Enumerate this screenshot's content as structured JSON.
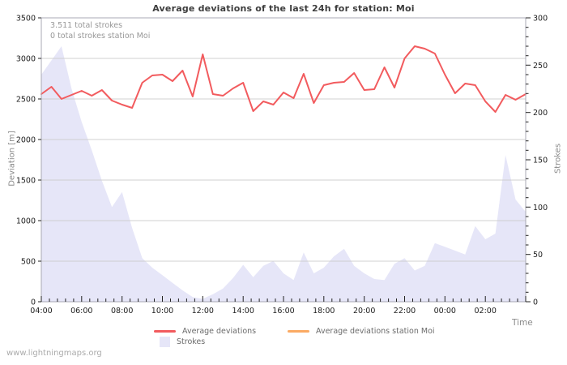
{
  "title": "Average deviations of the last 24h for station: Moi",
  "annotations": {
    "total_strokes": "3.511 total strokes",
    "station_strokes": "0 total strokes station Moi"
  },
  "watermark": "www.lightningmaps.org",
  "legend": {
    "avg_deviations": "Average deviations",
    "avg_deviations_station": "Average deviations station Moi",
    "strokes": "Strokes"
  },
  "colors": {
    "avg_deviations": "#f25b5e",
    "avg_deviations_station": "#fbaa63",
    "strokes_area": "#e6e6f8",
    "grid": "#cccccc",
    "border": "#a8a8b4",
    "tick": "#222222"
  },
  "chart_data": {
    "type": "line+area",
    "title": "Average deviations of the last 24h for station: Moi",
    "x": [
      "04:00",
      "04:30",
      "05:00",
      "05:30",
      "06:00",
      "06:30",
      "07:00",
      "07:30",
      "08:00",
      "08:30",
      "09:00",
      "09:30",
      "10:00",
      "10:30",
      "11:00",
      "11:30",
      "12:00",
      "12:30",
      "13:00",
      "13:30",
      "14:00",
      "14:30",
      "15:00",
      "15:30",
      "16:00",
      "16:30",
      "17:00",
      "17:30",
      "18:00",
      "18:30",
      "19:00",
      "19:30",
      "20:00",
      "20:30",
      "21:00",
      "21:30",
      "22:00",
      "22:30",
      "23:00",
      "23:30",
      "00:00",
      "00:30",
      "01:00",
      "01:30",
      "02:00",
      "02:30",
      "03:00",
      "03:30",
      "04:00"
    ],
    "series": [
      {
        "name": "Average deviations",
        "type": "line",
        "axis": "left",
        "color": "#f25b5e",
        "values": [
          2560,
          2650,
          2500,
          2550,
          2600,
          2540,
          2610,
          2480,
          2430,
          2390,
          2700,
          2790,
          2800,
          2720,
          2850,
          2530,
          3050,
          2560,
          2540,
          2630,
          2700,
          2350,
          2470,
          2430,
          2580,
          2510,
          2810,
          2450,
          2670,
          2700,
          2710,
          2820,
          2610,
          2620,
          2890,
          2640,
          3000,
          3150,
          3120,
          3060,
          2800,
          2570,
          2690,
          2670,
          2470,
          2340,
          2550,
          2490,
          2560
        ]
      },
      {
        "name": "Average deviations station Moi",
        "type": "line",
        "axis": "left",
        "color": "#fbaa63",
        "values": []
      },
      {
        "name": "Strokes",
        "type": "area",
        "axis": "right",
        "color": "#e6e6f8",
        "values": [
          240,
          255,
          270,
          225,
          190,
          160,
          128,
          100,
          116,
          78,
          46,
          36,
          28,
          20,
          12,
          5,
          3,
          8,
          14,
          25,
          39,
          26,
          38,
          43,
          30,
          23,
          52,
          30,
          36,
          48,
          56,
          38,
          30,
          24,
          23,
          40,
          46,
          33,
          38,
          62,
          58,
          54,
          50,
          80,
          66,
          72,
          155,
          108,
          95
        ]
      }
    ],
    "left_axis": {
      "label": "Deviation [m]",
      "min": 0,
      "max": 3500,
      "tick_step": 500
    },
    "right_axis": {
      "label": "Strokes",
      "min": 0,
      "max": 300,
      "tick_step": 50,
      "minor_step": 10
    },
    "x_axis": {
      "label": "Time",
      "span_hours": 24,
      "minor_step_hours": 0.4,
      "major_step_hours": 2,
      "tick_labels": [
        "04:00",
        "06:00",
        "08:00",
        "10:00",
        "12:00",
        "14:00",
        "16:00",
        "18:00",
        "20:00",
        "22:00",
        "00:00",
        "02:00"
      ]
    },
    "grid": "horizontal",
    "legend_position": "bottom"
  }
}
